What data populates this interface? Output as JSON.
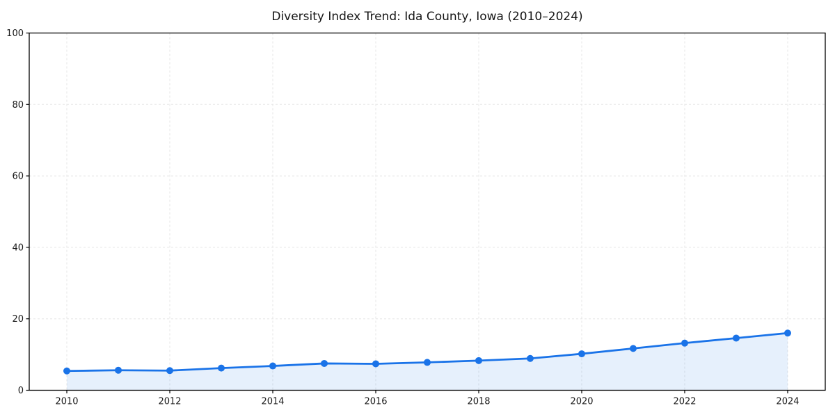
{
  "chart_data": {
    "type": "line",
    "title": "Diversity Index Trend: Ida County, Iowa (2010–2024)",
    "x": [
      2010,
      2011,
      2012,
      2013,
      2014,
      2015,
      2016,
      2017,
      2018,
      2019,
      2020,
      2021,
      2022,
      2023,
      2024
    ],
    "series": [
      {
        "name": "Diversity Index",
        "values": [
          5.4,
          5.6,
          5.5,
          6.2,
          6.8,
          7.5,
          7.4,
          7.8,
          8.3,
          8.9,
          10.2,
          11.7,
          13.2,
          14.6,
          16.0
        ]
      }
    ],
    "xlabel": "",
    "ylabel": "",
    "xlim": [
      2009.27,
      2024.73
    ],
    "ylim": [
      0,
      100
    ],
    "xticks": [
      2010,
      2012,
      2014,
      2016,
      2018,
      2020,
      2022,
      2024
    ],
    "yticks": [
      0,
      20,
      40,
      60,
      80,
      100
    ],
    "grid": true,
    "grid_style": "dashed",
    "grid_color": "#e5e5e5",
    "legend": false,
    "line_color": "#1a73e8",
    "marker": "circle",
    "marker_size": 5,
    "fill_under": true,
    "fill_color": "#1a73e8",
    "fill_opacity": 0.11,
    "spine_color": "#000000",
    "background": "#ffffff"
  }
}
